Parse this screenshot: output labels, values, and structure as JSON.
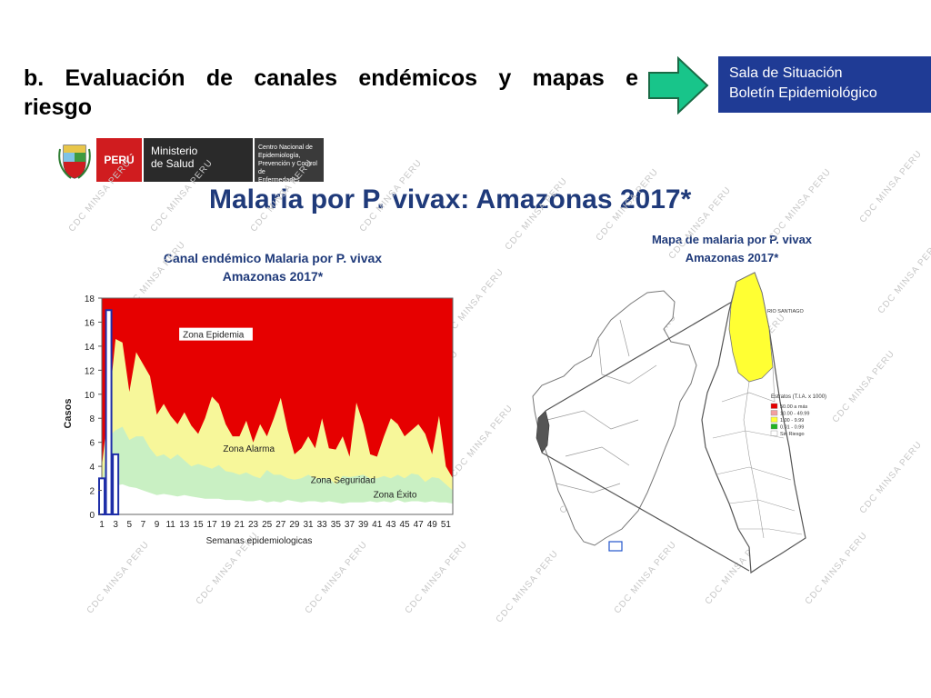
{
  "header": {
    "title": "b. Evaluación de canales endémicos y mapas e riesgo"
  },
  "info_box": {
    "line1": "Sala de Situación",
    "line2": "Boletín Epidemiológico"
  },
  "logo": {
    "country": "PERÚ",
    "ministry_line1": "Ministerio",
    "ministry_line2": "de Salud",
    "center_line1": "Centro Nacional de Epidemiología,",
    "center_line2": "Prevención y Control de",
    "center_line3": "Enfermedades"
  },
  "slide_title": "Malaria por P. vivax: Amazonas 2017*",
  "watermark_text": "CDC MINSA PERU",
  "chart_data": {
    "type": "area",
    "title_line1": "Canal endémico Malaria por P. vivax",
    "title_line2": "Amazonas 2017*",
    "xlabel": "Semanas epidemiologicas",
    "ylabel": "Casos",
    "ylim": [
      0,
      18
    ],
    "yticks": [
      0,
      2,
      4,
      6,
      8,
      10,
      12,
      14,
      16,
      18
    ],
    "xticks": [
      "1",
      "3",
      "5",
      "7",
      "9",
      "11",
      "13",
      "15",
      "17",
      "19",
      "21",
      "23",
      "25",
      "27",
      "29",
      "31",
      "33",
      "35",
      "37",
      "39",
      "41",
      "43",
      "45",
      "47",
      "49",
      "51"
    ],
    "zone_labels": [
      "Zona Epidemia",
      "Zona Alarma",
      "Zona Seguridad",
      "Zona Éxito"
    ],
    "colors": {
      "epidemia": "#e60000",
      "alarma": "#f7f79a",
      "seguridad": "#c9f0c3",
      "exito": "#ffffff",
      "bars": "#1f2fa8"
    },
    "weeks": [
      1,
      2,
      3,
      4,
      5,
      6,
      7,
      8,
      9,
      10,
      11,
      12,
      13,
      14,
      15,
      16,
      17,
      18,
      19,
      20,
      21,
      22,
      23,
      24,
      25,
      26,
      27,
      28,
      29,
      30,
      31,
      32,
      33,
      34,
      35,
      36,
      37,
      38,
      39,
      40,
      41,
      42,
      43,
      44,
      45,
      46,
      47,
      48,
      49,
      50,
      51,
      52
    ],
    "alarma_upper": [
      4,
      9,
      14.6,
      14.3,
      10.2,
      13.5,
      12.5,
      11.5,
      8.3,
      9.2,
      8.2,
      7.5,
      8.5,
      7.4,
      6.7,
      8,
      9.8,
      9.2,
      7.5,
      6.5,
      6.5,
      7.8,
      6,
      7.5,
      6.5,
      8,
      9.7,
      7,
      5,
      5.5,
      6.5,
      5.5,
      8,
      5.5,
      5.4,
      6.5,
      4.8,
      9.3,
      7.5,
      5,
      4.8,
      6.5,
      8,
      7.5,
      6.5,
      7,
      7.5,
      6.7,
      5,
      8.2,
      4,
      3
    ],
    "seguridad_upper": [
      2.5,
      6.5,
      7,
      7.3,
      6.2,
      6.5,
      6.5,
      5.5,
      4.8,
      5,
      4.6,
      5,
      4.5,
      4,
      4.2,
      4,
      3.8,
      4.1,
      3.6,
      3.5,
      3.3,
      3.5,
      3.2,
      3,
      3.7,
      3.3,
      3.3,
      3,
      2.9,
      3,
      3.3,
      3,
      3,
      3,
      2.5,
      3.2,
      3.1,
      3.2,
      3.3,
      3,
      3,
      3.2,
      3,
      3.3,
      3,
      3.4,
      3.3,
      2.7,
      3.1,
      3,
      2.5,
      2
    ],
    "exito_upper": [
      1,
      2,
      2.4,
      2.5,
      2.3,
      2.2,
      2,
      1.8,
      1.6,
      1.7,
      1.6,
      1.5,
      1.6,
      1.5,
      1.4,
      1.3,
      1.3,
      1.3,
      1.2,
      1.2,
      1.2,
      1.1,
      1.1,
      1.2,
      1,
      1.1,
      1,
      1.2,
      1.1,
      1,
      1.1,
      1.1,
      1,
      1.1,
      1,
      0.9,
      1,
      1,
      1,
      1.1,
      1,
      1.1,
      1,
      1.2,
      1,
      1.1,
      1.1,
      1,
      1.1,
      1,
      1,
      0.9
    ],
    "cases_2017": [
      {
        "week": 1,
        "value": 3
      },
      {
        "week": 2,
        "value": 17
      },
      {
        "week": 3,
        "value": 5
      }
    ]
  },
  "map": {
    "title_line1": "Mapa de malaria por P. vivax",
    "title_line2": "Amazonas 2017*",
    "region_label": "RIO SANTIAGO",
    "legend": {
      "title": "Estratos (T.I.A. x 1000)",
      "items": [
        {
          "label": "50.00  a más",
          "color": "#e60000"
        },
        {
          "label": "10.00 - 49.99",
          "color": "#f3a0a0"
        },
        {
          "label": "1.00 - 9.99",
          "color": "#ffff33"
        },
        {
          "label": "0.01 - 0.99",
          "color": "#22b422"
        },
        {
          "label": "Sin Riesgo",
          "color": "#ffffff"
        }
      ]
    }
  }
}
